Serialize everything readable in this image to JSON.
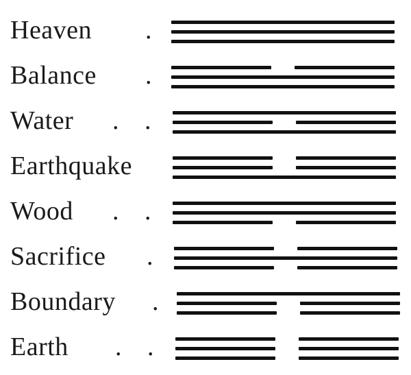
{
  "trigrams": [
    {
      "name": "Heaven",
      "leader": ".",
      "lines": [
        "solid",
        "solid",
        "solid"
      ]
    },
    {
      "name": "Balance",
      "leader": ".",
      "lines": [
        "broken",
        "solid",
        "solid"
      ]
    },
    {
      "name": "Water",
      "leader": ". .",
      "lines": [
        "solid",
        "broken",
        "solid"
      ]
    },
    {
      "name": "Earthquake",
      "leader": "",
      "lines": [
        "broken",
        "broken",
        "solid"
      ]
    },
    {
      "name": "Wood",
      "leader": ". .",
      "lines": [
        "solid",
        "solid",
        "broken"
      ]
    },
    {
      "name": "Sacrifice",
      "leader": ".",
      "lines": [
        "broken",
        "solid",
        "broken"
      ]
    },
    {
      "name": "Boundary",
      "leader": ".",
      "lines": [
        "solid",
        "broken",
        "broken"
      ]
    },
    {
      "name": "Earth",
      "leader": ". .",
      "lines": [
        "broken",
        "broken",
        "broken"
      ]
    }
  ],
  "colors": {
    "ink": "#111111",
    "text": "#1a1a1a",
    "background": "#ffffff"
  }
}
